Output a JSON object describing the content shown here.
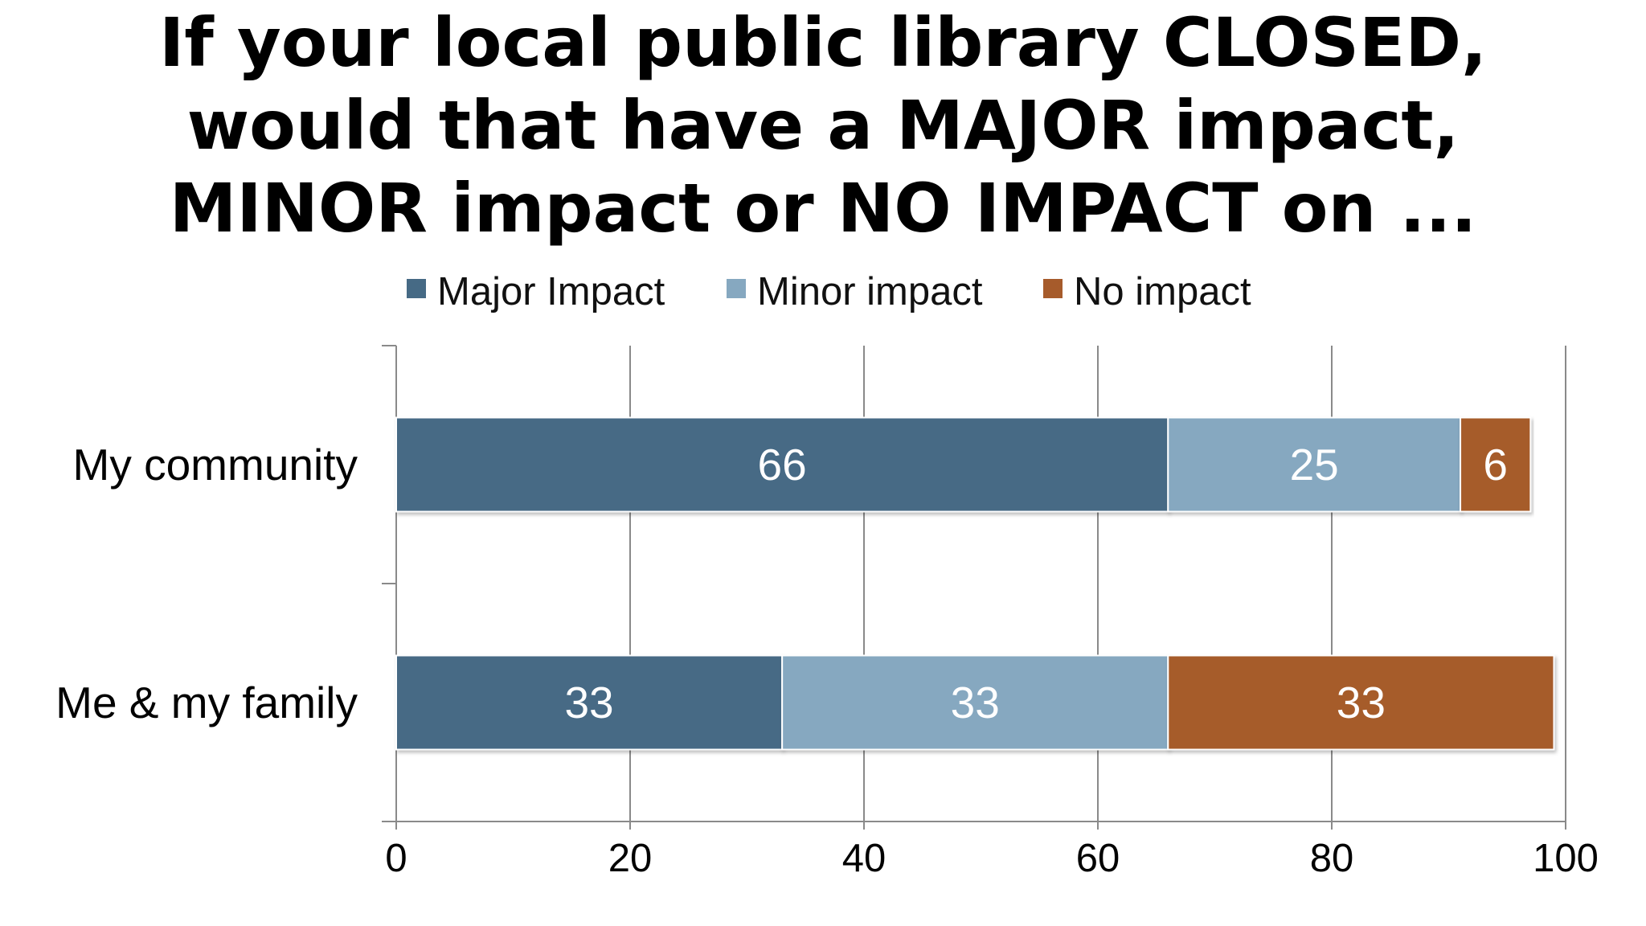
{
  "title_lines": [
    "If your local public library CLOSED,",
    "would that have a MAJOR impact,",
    "MINOR impact or NO IMPACT on ..."
  ],
  "chart_data": {
    "type": "bar",
    "orientation": "horizontal",
    "stacked": true,
    "title": "If your local public library CLOSED, would that have a MAJOR impact, MINOR impact or NO IMPACT on ...",
    "categories": [
      "My community",
      "Me & my family"
    ],
    "series": [
      {
        "name": "Major Impact",
        "values": [
          66,
          33
        ],
        "color": "#466a85"
      },
      {
        "name": "Minor impact",
        "values": [
          25,
          33
        ],
        "color": "#86a8c0"
      },
      {
        "name": "No impact",
        "values": [
          6,
          33
        ],
        "color": "#a65b2b"
      }
    ],
    "xlim": [
      0,
      100
    ],
    "xticks": [
      0,
      20,
      40,
      60,
      80,
      100
    ],
    "grid": true,
    "legend_position": "top",
    "data_labels": true
  }
}
